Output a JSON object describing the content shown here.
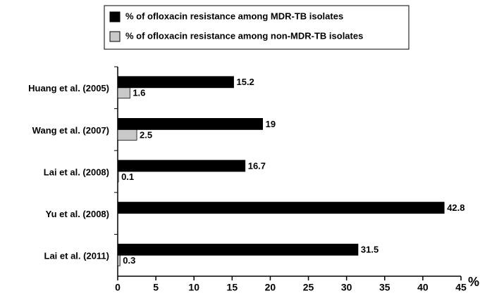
{
  "chart_data": {
    "type": "hbar",
    "categories": [
      "Huang et al. (2005)",
      "Wang et al. (2007)",
      "Lai et al. (2008)",
      "Yu et al. (2008)",
      "Lai et al. (2011)"
    ],
    "series": [
      {
        "name": "% of ofloxacin resistance among MDR-TB isolates",
        "color": "#000000",
        "values": [
          15.2,
          19,
          16.7,
          42.8,
          31.5
        ]
      },
      {
        "name": "% of ofloxacin resistance among non-MDR-TB isolates",
        "color": "#c8c8c8",
        "values": [
          1.6,
          2.5,
          0.1,
          null,
          0.3
        ]
      }
    ],
    "xlim": [
      0,
      45
    ],
    "xticks": [
      0,
      5,
      10,
      15,
      20,
      25,
      30,
      35,
      40,
      45
    ],
    "x_label": "%",
    "legend": "top"
  }
}
